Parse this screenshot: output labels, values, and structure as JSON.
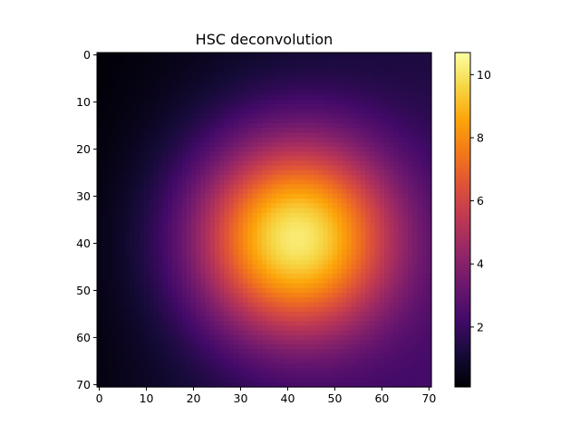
{
  "chart_data": {
    "type": "heatmap",
    "title": "HSC deconvolution",
    "xlabel": "",
    "ylabel": "",
    "xlim": [
      -0.5,
      70.5
    ],
    "ylim": [
      70.5,
      -0.5
    ],
    "y_axis_inverted": true,
    "grid_size": [
      71,
      71
    ],
    "colormap": "inferno",
    "colorbar": {
      "min": 0.1,
      "max": 10.7,
      "ticks": [
        2,
        4,
        6,
        8,
        10
      ],
      "placement": "right"
    },
    "x_ticks": [
      0,
      10,
      20,
      30,
      40,
      50,
      60,
      70
    ],
    "y_ticks": [
      0,
      10,
      20,
      30,
      40,
      50,
      60,
      70
    ],
    "peak": {
      "x": 42,
      "y": 39,
      "value": 10.7
    },
    "corner_values": {
      "top_left": 0.1,
      "top_right": 1.3,
      "bottom_left": 0.3,
      "bottom_right": 2.3
    },
    "grid": false
  }
}
